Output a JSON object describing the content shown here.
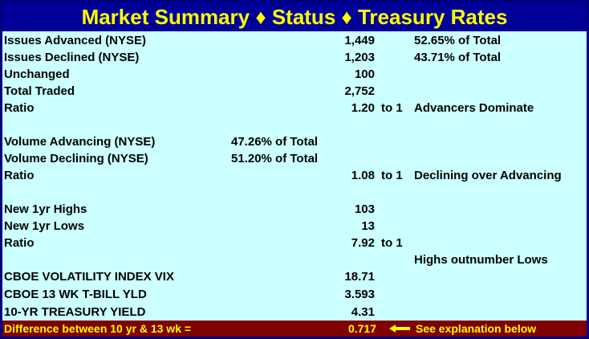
{
  "title": "Market Summary ♦ Status ♦ Treasury Rates",
  "rows": [
    {
      "label": "Issues Advanced (NYSE)",
      "mid": "",
      "value": "1,449",
      "to": "",
      "note": "52.65% of Total"
    },
    {
      "label": "Issues Declined (NYSE)",
      "mid": "",
      "value": "1,203",
      "to": "",
      "note": "43.71% of Total"
    },
    {
      "label": "Unchanged",
      "mid": "",
      "value": "100",
      "to": "",
      "note": ""
    },
    {
      "label": "Total Traded",
      "mid": "",
      "value": "2,752",
      "to": "",
      "note": ""
    },
    {
      "label": "Ratio",
      "mid": "",
      "value": "1.20",
      "to": "to 1",
      "note": "Advancers Dominate"
    },
    {
      "label": "Volume Advancing (NYSE)",
      "mid": "47.26% of Total",
      "value": "",
      "to": "",
      "note": ""
    },
    {
      "label": "Volume Declining (NYSE)",
      "mid": "51.20% of Total",
      "value": "",
      "to": "",
      "note": ""
    },
    {
      "label": "Ratio",
      "mid": "",
      "value": "1.08",
      "to": "to 1",
      "note": "Declining over Advancing"
    },
    {
      "label": "New 1yr Highs",
      "mid": "",
      "value": "103",
      "to": "",
      "note": ""
    },
    {
      "label": "New 1yr Lows",
      "mid": "",
      "value": "13",
      "to": "",
      "note": ""
    },
    {
      "label": "Ratio",
      "mid": "",
      "value": "7.92",
      "to": "to 1",
      "note": ""
    },
    {
      "label": "",
      "mid": "",
      "value": "",
      "to": "",
      "note": "Highs outnumber Lows"
    },
    {
      "label": "CBOE VOLATILITY INDEX VIX",
      "mid": "",
      "value": "18.71",
      "to": "",
      "note": ""
    },
    {
      "label": "CBOE 13 WK T-BILL YLD",
      "mid": "",
      "value": "3.593",
      "to": "",
      "note": ""
    },
    {
      "label": "10-YR TREASURY YIELD",
      "mid": "",
      "value": "4.31",
      "to": "",
      "note": ""
    }
  ],
  "footer": {
    "label": "Difference between 10 yr & 13 wk =",
    "value": "0.717",
    "note": "See explanation below",
    "arrow_icon": "left-arrow-icon"
  },
  "colors": {
    "title_bg": "#000099",
    "title_text": "#ffff00",
    "body_bg": "#ccffff",
    "footer_bg": "#800000",
    "footer_text": "#ffff00"
  }
}
